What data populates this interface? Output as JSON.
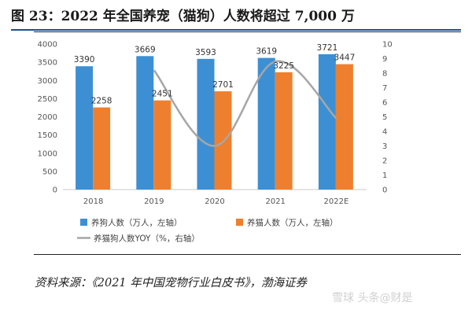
{
  "header": {
    "title": "图 23：2022 年全国养宠（猫狗）人数将超过 7,000 万"
  },
  "footer": {
    "source": "资料来源：《2021 年中国宠物行业白皮书》，渤海证券",
    "watermark": "雪球 头条@财是"
  },
  "chart_data": {
    "type": "bar",
    "categories": [
      "2018",
      "2019",
      "2020",
      "2021",
      "2022E"
    ],
    "series": [
      {
        "name": "养狗人数（万人，左轴）",
        "type": "bar",
        "axis": "left",
        "color": "#3d8fd4",
        "values": [
          3390,
          3669,
          3593,
          3619,
          3721
        ]
      },
      {
        "name": "养猫人数（万人，左轴）",
        "type": "bar",
        "axis": "left",
        "color": "#ee7f2e",
        "values": [
          2258,
          2451,
          2701,
          3225,
          3447
        ]
      },
      {
        "name": "养猫狗人数YOY（%，右轴）",
        "type": "line",
        "axis": "right",
        "color": "#a6a6a6",
        "values": [
          null,
          8.2,
          3.0,
          8.8,
          4.9
        ]
      }
    ],
    "y_left": {
      "min": 0,
      "max": 4000,
      "ticks": [
        0,
        500,
        1000,
        1500,
        2000,
        2500,
        3000,
        3500,
        4000
      ]
    },
    "y_right": {
      "min": 0,
      "max": 10,
      "ticks": [
        0,
        1,
        2,
        3,
        4,
        5,
        6,
        7,
        8,
        9,
        10
      ]
    },
    "grid": false,
    "legend_position": "bottom"
  }
}
